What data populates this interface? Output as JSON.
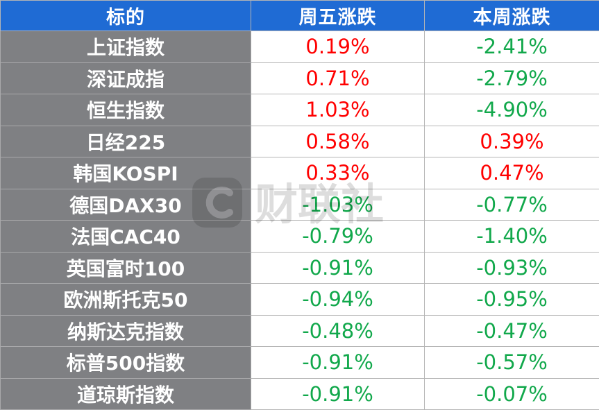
{
  "header": {
    "col_name": "标的",
    "col_friday": "周五涨跌",
    "col_week": "本周涨跌"
  },
  "rows": [
    {
      "name": "上证指数",
      "friday": "0.19%",
      "week": "-2.41%"
    },
    {
      "name": "深证成指",
      "friday": "0.71%",
      "week": "-2.79%"
    },
    {
      "name": "恒生指数",
      "friday": "1.03%",
      "week": "-4.90%"
    },
    {
      "name": "日经225",
      "friday": "0.58%",
      "week": "0.39%"
    },
    {
      "name": "韩国KOSPI",
      "friday": "0.33%",
      "week": "0.47%"
    },
    {
      "name": "德国DAX30",
      "friday": "-1.03%",
      "week": "-0.77%"
    },
    {
      "name": "法国CAC40",
      "friday": "-0.79%",
      "week": "-1.40%"
    },
    {
      "name": "英国富时100",
      "friday": "-0.91%",
      "week": "-0.93%"
    },
    {
      "name": "欧洲斯托克50",
      "friday": "-0.94%",
      "week": "-0.95%"
    },
    {
      "name": "纳斯达克指数",
      "friday": "-0.48%",
      "week": "-0.47%"
    },
    {
      "name": "标普500指数",
      "friday": "-0.91%",
      "week": "-0.57%"
    },
    {
      "name": "道琼斯指数",
      "friday": "-0.91%",
      "week": "-0.07%"
    }
  ],
  "colors": {
    "header_bg": "#1f6bd4",
    "name_bg": "#7f8083",
    "positive": "#ff0000",
    "negative": "#11a84b"
  },
  "watermark": {
    "text": "财联社",
    "icon": "cls-logo-icon"
  }
}
